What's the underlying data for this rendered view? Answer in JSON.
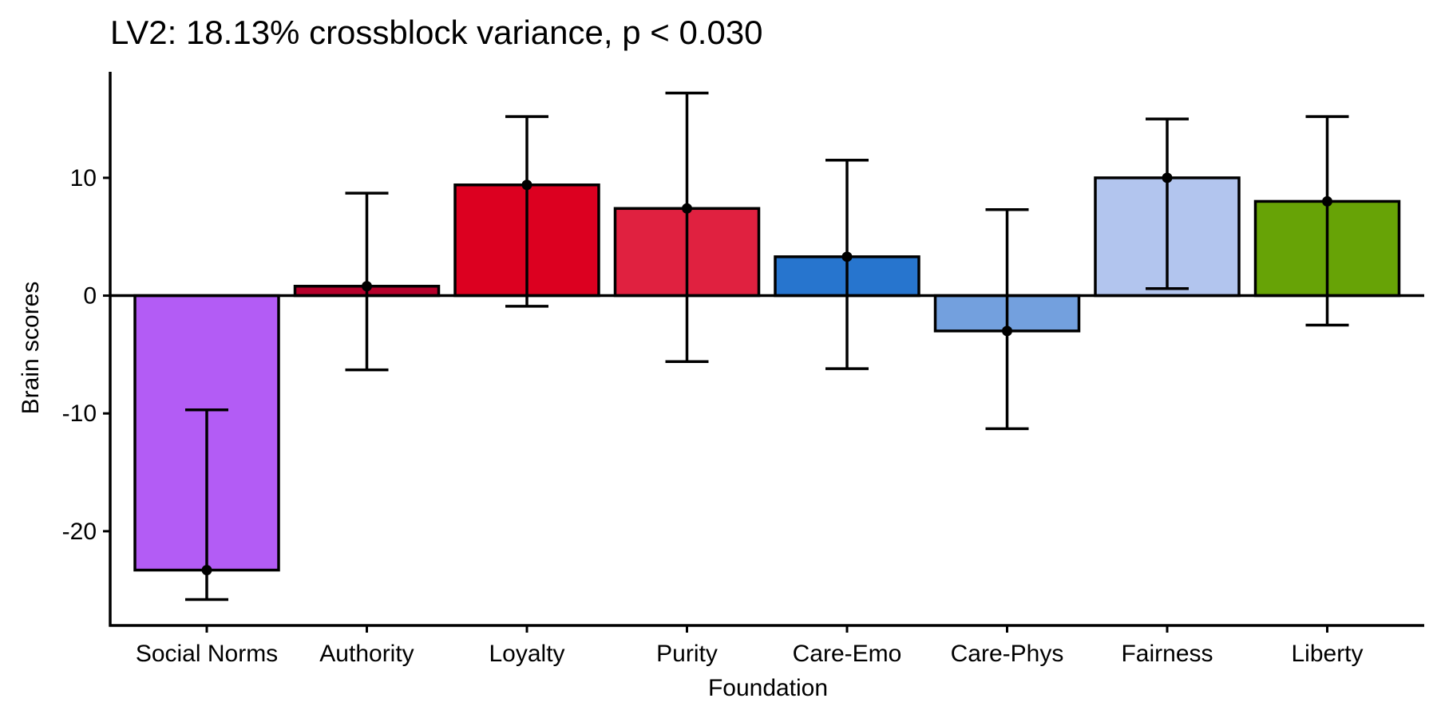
{
  "chart_data": {
    "type": "bar",
    "title": "LV2: 18.13% crossblock variance, p < 0.030",
    "xlabel": "Foundation",
    "ylabel": "Brain scores",
    "ylim": [
      -28,
      19
    ],
    "yticks": [
      10,
      0,
      -10,
      -20
    ],
    "ytick_labels": [
      "10",
      "0",
      "-10",
      "-20"
    ],
    "categories": [
      "Social Norms",
      "Authority",
      "Loyalty",
      "Purity",
      "Care-Emo",
      "Care-Phys",
      "Fairness",
      "Liberty"
    ],
    "values": [
      -23.3,
      0.8,
      9.4,
      7.4,
      3.3,
      -3.0,
      10.0,
      8.0
    ],
    "error_low": [
      -25.8,
      -6.3,
      -0.9,
      -5.6,
      -6.2,
      -11.3,
      0.6,
      -2.5
    ],
    "error_high": [
      -9.7,
      8.7,
      15.2,
      17.2,
      11.5,
      7.3,
      15.0,
      15.2
    ],
    "colors": [
      "#B35CF5",
      "#B5002B",
      "#DC0020",
      "#E02140",
      "#2775CE",
      "#73A0DE",
      "#B2C5EE",
      "#67A306"
    ],
    "grid": false,
    "legend": "none"
  }
}
